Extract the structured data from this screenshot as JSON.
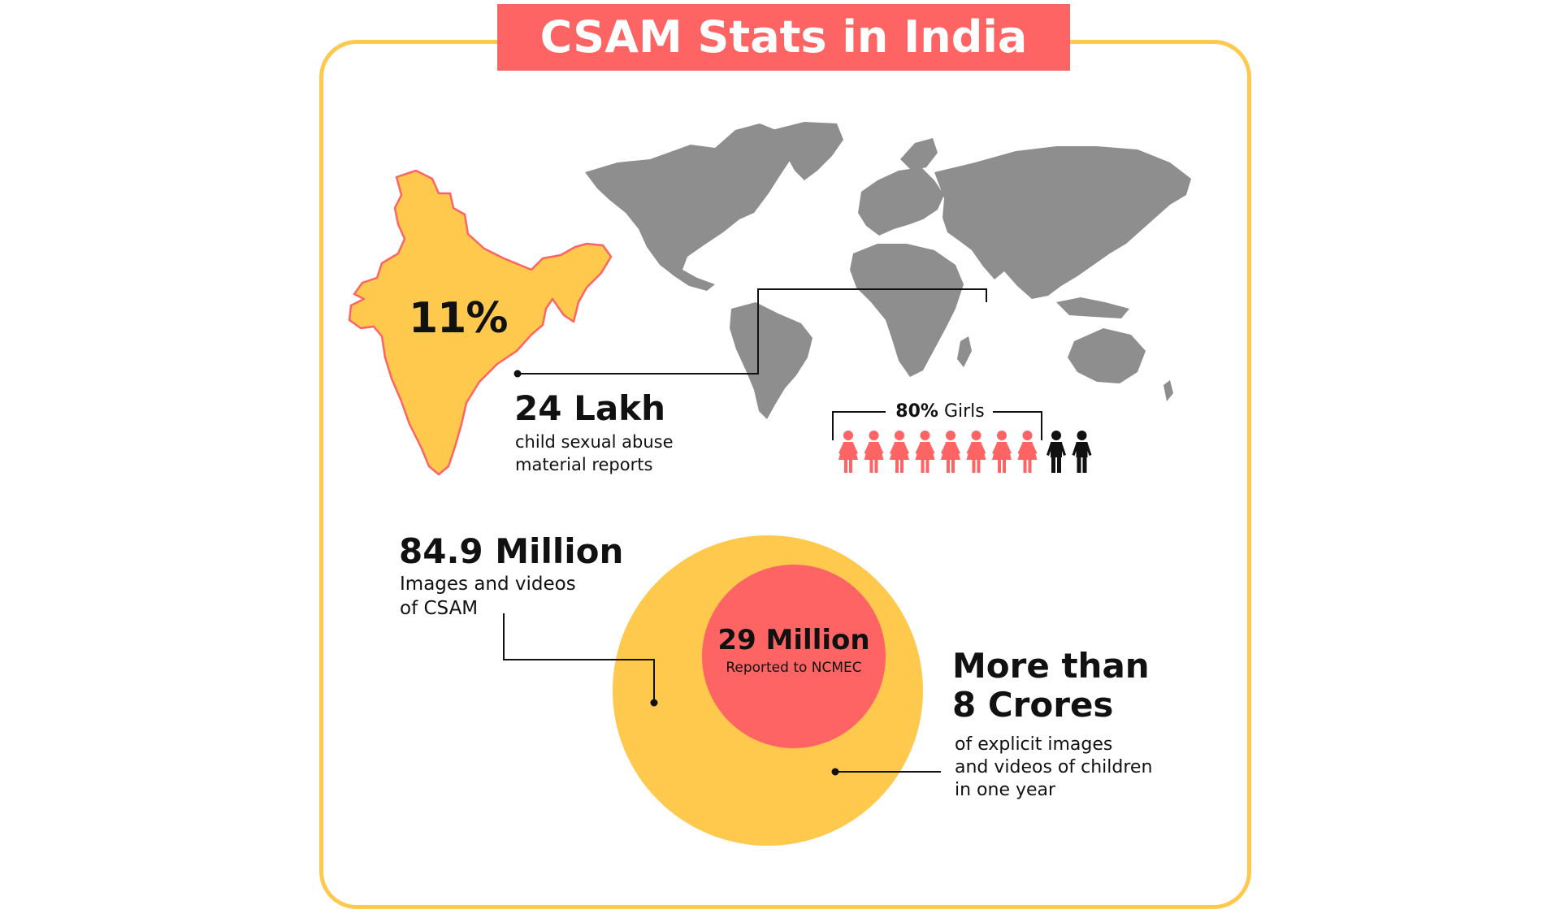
{
  "title": "CSAM Stats in India",
  "colors": {
    "accent_red": "#FF6464",
    "accent_yellow": "#FFC94D",
    "map_gray": "#8E8E8E",
    "text": "#111111"
  },
  "icons": {
    "world": "world-map-icon",
    "india": "india-map-icon",
    "girl": "girl-icon",
    "boy": "boy-icon"
  },
  "india_stat": {
    "percent": "11%"
  },
  "lakh_stat": {
    "value": "24 Lakh",
    "line1": "child sexual abuse",
    "line2": "material reports"
  },
  "girls_stat": {
    "percent": "80%",
    "label": "Girls",
    "girls_count": 8,
    "boys_count": 2
  },
  "million_stat": {
    "value": "84.9 Million",
    "line1": "Images and videos",
    "line2": "of CSAM"
  },
  "ncmec_stat": {
    "value": "29 Million",
    "label": "Reported to NCMEC"
  },
  "crores_stat": {
    "line1": "More than",
    "line2": "8 Crores",
    "desc1": "of explicit images",
    "desc2": "and videos of children",
    "desc3": "in one year"
  }
}
